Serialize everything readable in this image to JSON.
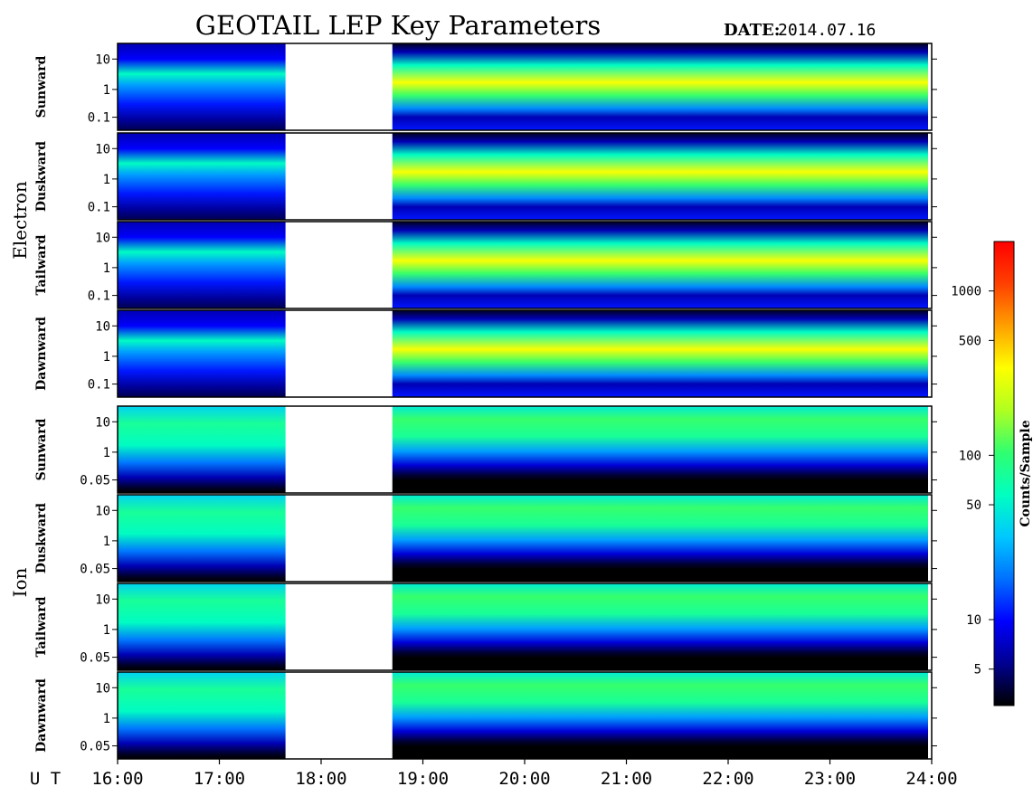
{
  "chart_data": {
    "type": "heatmap",
    "title": "GEOTAIL LEP Key Parameters",
    "date_label": "DATE:",
    "date_value": "2014.07.16",
    "x_axis": {
      "label": "U T",
      "ticks": [
        "16:00",
        "17:00",
        "18:00",
        "19:00",
        "20:00",
        "21:00",
        "22:00",
        "23:00",
        "24:00"
      ],
      "range_hours": [
        16,
        24
      ]
    },
    "data_gap_hours": [
      17.65,
      18.7
    ],
    "groups": [
      {
        "name": "Electron",
        "panels": [
          {
            "name": "Sunward",
            "y_ticks": [
              "10",
              "1",
              "0.1"
            ]
          },
          {
            "name": "Duskward",
            "y_ticks": [
              "10",
              "1",
              "0.1"
            ]
          },
          {
            "name": "Tailward",
            "y_ticks": [
              "10",
              "1",
              "0.1"
            ]
          },
          {
            "name": "Dawnward",
            "y_ticks": [
              "10",
              "1",
              "0.1"
            ]
          }
        ]
      },
      {
        "name": "Ion",
        "panels": [
          {
            "name": "Sunward",
            "y_ticks": [
              "10",
              "1",
              "0.05"
            ]
          },
          {
            "name": "Duskward",
            "y_ticks": [
              "10",
              "1",
              "0.05"
            ]
          },
          {
            "name": "Tailward",
            "y_ticks": [
              "10",
              "1",
              "0.05"
            ]
          },
          {
            "name": "Dawnward",
            "y_ticks": [
              "10",
              "1",
              "0.05"
            ]
          }
        ]
      }
    ],
    "colorbar": {
      "label": "Counts/Sample",
      "ticks": [
        "1000",
        "500",
        "100",
        "50",
        "10",
        "5"
      ],
      "scale": "log",
      "range": [
        3,
        2000
      ],
      "colormap": [
        "#000000",
        "#000090",
        "#0000ff",
        "#0070ff",
        "#00c8ff",
        "#00ffc0",
        "#30ff70",
        "#b0ff20",
        "#ffff00",
        "#ffa000",
        "#ff4000",
        "#ff0000"
      ]
    }
  }
}
